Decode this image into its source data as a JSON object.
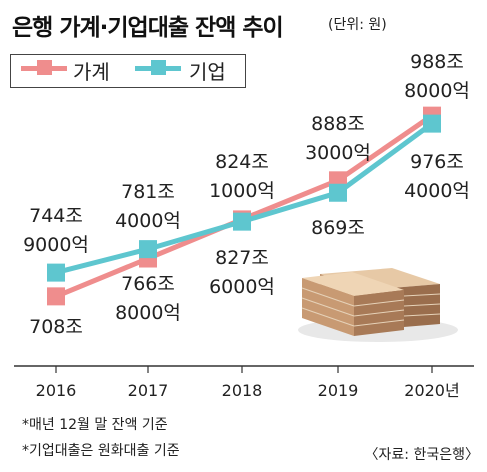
{
  "header": {
    "title": "은행 가계·기업대출 잔액 추이",
    "unit": "(단위: 원)"
  },
  "notes": [
    "*매년 12월 말 잔액 기준",
    "*기업대출은 원화대출 기준"
  ],
  "source": "〈자료: 한국은행〉",
  "colors": {
    "household": "#ef8d8d",
    "business": "#5ec6cf",
    "axis": "#333333"
  },
  "chart_data": {
    "type": "line",
    "categories": [
      "2016",
      "2017",
      "2018",
      "2019",
      "2020년"
    ],
    "series": [
      {
        "name": "가계",
        "values": [
          708,
          766.8,
          827.6,
          888.3,
          988.8
        ],
        "labels": [
          [
            "708조"
          ],
          [
            "766조",
            "8000억"
          ],
          [
            "827조",
            "6000억"
          ],
          [
            "888조",
            "3000억"
          ],
          [
            "988조",
            "8000억"
          ]
        ]
      },
      {
        "name": "기업",
        "values": [
          744.9,
          781.4,
          824.1,
          869,
          976.4
        ],
        "labels": [
          [
            "744조",
            "9000억"
          ],
          [
            "781조",
            "4000억"
          ],
          [
            "824조",
            "1000억"
          ],
          [
            "869조"
          ],
          [
            "976조",
            "4000억"
          ]
        ]
      }
    ],
    "ylim": [
      620,
      1010
    ]
  }
}
